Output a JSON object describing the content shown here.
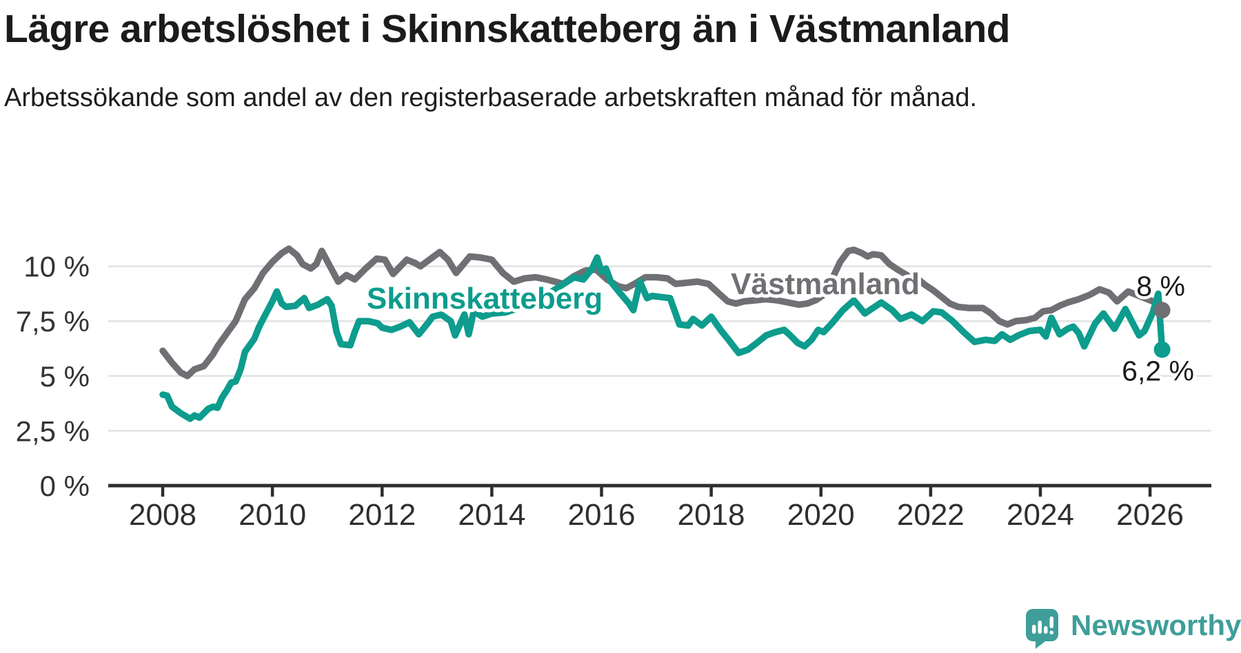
{
  "header": {
    "title": "Lägre arbetslöshet i Skinnskatteberg än i Västmanland",
    "subtitle": "Arbetssökande som andel av den registerbaserade arbetskraften månad för månad."
  },
  "colors": {
    "skinnskatteberg": "#0d9c8d",
    "vastmanland": "#6f7074",
    "axis": "#2e2e2e",
    "grid": "#e2e2e2",
    "label_text": "#1a1a1a",
    "logo": "#3f9e9a"
  },
  "footer": {
    "brand": "Newsworthy"
  },
  "chart_data": {
    "type": "line",
    "title": "Lägre arbetslöshet i Skinnskatteberg än i Västmanland",
    "subtitle": "Arbetssökande som andel av den registerbaserade arbetskraften månad för månad.",
    "grid": true,
    "x_range": [
      2008,
      2026.6
    ],
    "ylim": [
      0,
      11.3
    ],
    "x_ticks": [
      {
        "value": 2008,
        "label": "2008"
      },
      {
        "value": 2010,
        "label": "2010"
      },
      {
        "value": 2012,
        "label": "2012"
      },
      {
        "value": 2014,
        "label": "2014"
      },
      {
        "value": 2016,
        "label": "2016"
      },
      {
        "value": 2018,
        "label": "2018"
      },
      {
        "value": 2020,
        "label": "2020"
      },
      {
        "value": 2022,
        "label": "2022"
      },
      {
        "value": 2024,
        "label": "2024"
      },
      {
        "value": 2026,
        "label": "2026"
      }
    ],
    "y_ticks": [
      {
        "value": 0,
        "label": "0 %"
      },
      {
        "value": 2.5,
        "label": "2,5 %"
      },
      {
        "value": 5,
        "label": "5 %"
      },
      {
        "value": 7.5,
        "label": "7,5 %"
      },
      {
        "value": 10,
        "label": "10 %"
      }
    ],
    "series": [
      {
        "name": "Skinnskatteberg",
        "color_key": "skinnskatteberg",
        "end_value_label": "6,2 %",
        "end_label_pos": "below",
        "inline_label": {
          "x_year": 2013.87,
          "y_value": 8.55
        },
        "points": [
          [
            2008.0,
            4.15
          ],
          [
            2008.08,
            4.1
          ],
          [
            2008.17,
            3.6
          ],
          [
            2008.33,
            3.3
          ],
          [
            2008.5,
            3.05
          ],
          [
            2008.58,
            3.2
          ],
          [
            2008.67,
            3.1
          ],
          [
            2008.83,
            3.5
          ],
          [
            2008.92,
            3.6
          ],
          [
            2009.0,
            3.55
          ],
          [
            2009.08,
            4.0
          ],
          [
            2009.17,
            4.35
          ],
          [
            2009.25,
            4.7
          ],
          [
            2009.33,
            4.75
          ],
          [
            2009.42,
            5.3
          ],
          [
            2009.5,
            6.1
          ],
          [
            2009.67,
            6.7
          ],
          [
            2009.75,
            7.2
          ],
          [
            2009.83,
            7.6
          ],
          [
            2010.0,
            8.4
          ],
          [
            2010.08,
            8.85
          ],
          [
            2010.17,
            8.3
          ],
          [
            2010.25,
            8.15
          ],
          [
            2010.42,
            8.2
          ],
          [
            2010.58,
            8.55
          ],
          [
            2010.67,
            8.1
          ],
          [
            2010.83,
            8.25
          ],
          [
            2011.0,
            8.5
          ],
          [
            2011.08,
            8.2
          ],
          [
            2011.17,
            7.0
          ],
          [
            2011.25,
            6.45
          ],
          [
            2011.42,
            6.4
          ],
          [
            2011.5,
            7.0
          ],
          [
            2011.58,
            7.5
          ],
          [
            2011.75,
            7.5
          ],
          [
            2011.92,
            7.4
          ],
          [
            2012.0,
            7.2
          ],
          [
            2012.17,
            7.1
          ],
          [
            2012.33,
            7.25
          ],
          [
            2012.5,
            7.45
          ],
          [
            2012.67,
            6.9
          ],
          [
            2012.83,
            7.4
          ],
          [
            2012.92,
            7.7
          ],
          [
            2013.08,
            7.8
          ],
          [
            2013.25,
            7.5
          ],
          [
            2013.33,
            6.85
          ],
          [
            2013.5,
            7.8
          ],
          [
            2013.58,
            6.9
          ],
          [
            2013.67,
            7.95
          ],
          [
            2013.83,
            7.7
          ],
          [
            2014.0,
            7.85
          ],
          [
            2014.25,
            7.9
          ],
          [
            2014.5,
            8.1
          ],
          [
            2014.75,
            8.4
          ],
          [
            2015.0,
            8.7
          ],
          [
            2015.25,
            9.1
          ],
          [
            2015.5,
            9.5
          ],
          [
            2015.67,
            9.4
          ],
          [
            2015.83,
            9.9
          ],
          [
            2015.92,
            10.4
          ],
          [
            2016.0,
            9.75
          ],
          [
            2016.08,
            9.9
          ],
          [
            2016.17,
            9.3
          ],
          [
            2016.33,
            8.8
          ],
          [
            2016.5,
            8.3
          ],
          [
            2016.58,
            8.0
          ],
          [
            2016.7,
            9.3
          ],
          [
            2016.83,
            8.55
          ],
          [
            2016.92,
            8.65
          ],
          [
            2017.08,
            8.6
          ],
          [
            2017.25,
            8.55
          ],
          [
            2017.42,
            7.35
          ],
          [
            2017.58,
            7.3
          ],
          [
            2017.67,
            7.6
          ],
          [
            2017.83,
            7.3
          ],
          [
            2018.0,
            7.7
          ],
          [
            2018.17,
            7.1
          ],
          [
            2018.33,
            6.6
          ],
          [
            2018.5,
            6.05
          ],
          [
            2018.67,
            6.2
          ],
          [
            2018.83,
            6.5
          ],
          [
            2019.0,
            6.85
          ],
          [
            2019.17,
            7.0
          ],
          [
            2019.33,
            7.1
          ],
          [
            2019.42,
            6.9
          ],
          [
            2019.58,
            6.5
          ],
          [
            2019.7,
            6.35
          ],
          [
            2019.83,
            6.65
          ],
          [
            2019.95,
            7.1
          ],
          [
            2020.05,
            7.0
          ],
          [
            2020.2,
            7.4
          ],
          [
            2020.4,
            8.0
          ],
          [
            2020.6,
            8.45
          ],
          [
            2020.8,
            7.85
          ],
          [
            2020.95,
            8.1
          ],
          [
            2021.1,
            8.35
          ],
          [
            2021.3,
            8.0
          ],
          [
            2021.45,
            7.6
          ],
          [
            2021.65,
            7.8
          ],
          [
            2021.85,
            7.5
          ],
          [
            2022.05,
            7.95
          ],
          [
            2022.2,
            7.9
          ],
          [
            2022.4,
            7.5
          ],
          [
            2022.6,
            7.0
          ],
          [
            2022.8,
            6.55
          ],
          [
            2023.0,
            6.65
          ],
          [
            2023.17,
            6.6
          ],
          [
            2023.3,
            6.9
          ],
          [
            2023.45,
            6.65
          ],
          [
            2023.6,
            6.85
          ],
          [
            2023.8,
            7.05
          ],
          [
            2024.0,
            7.1
          ],
          [
            2024.1,
            6.8
          ],
          [
            2024.2,
            7.65
          ],
          [
            2024.35,
            6.9
          ],
          [
            2024.5,
            7.15
          ],
          [
            2024.6,
            7.25
          ],
          [
            2024.7,
            6.95
          ],
          [
            2024.8,
            6.35
          ],
          [
            2025.0,
            7.4
          ],
          [
            2025.15,
            7.85
          ],
          [
            2025.35,
            7.15
          ],
          [
            2025.55,
            8.05
          ],
          [
            2025.8,
            6.85
          ],
          [
            2025.9,
            7.05
          ],
          [
            2026.05,
            7.9
          ],
          [
            2026.15,
            8.75
          ],
          [
            2026.22,
            6.2
          ]
        ]
      },
      {
        "name": "Västmanland",
        "color_key": "vastmanland",
        "end_value_label": "8 %",
        "end_label_pos": "above",
        "inline_label": {
          "x_year": 2020.08,
          "y_value": 9.2
        },
        "points": [
          [
            2008.0,
            6.15
          ],
          [
            2008.17,
            5.6
          ],
          [
            2008.33,
            5.15
          ],
          [
            2008.45,
            5.0
          ],
          [
            2008.58,
            5.3
          ],
          [
            2008.75,
            5.45
          ],
          [
            2008.92,
            6.0
          ],
          [
            2009.0,
            6.35
          ],
          [
            2009.17,
            6.95
          ],
          [
            2009.33,
            7.5
          ],
          [
            2009.5,
            8.5
          ],
          [
            2009.67,
            9.0
          ],
          [
            2009.83,
            9.7
          ],
          [
            2010.0,
            10.2
          ],
          [
            2010.17,
            10.6
          ],
          [
            2010.3,
            10.8
          ],
          [
            2010.45,
            10.5
          ],
          [
            2010.55,
            10.1
          ],
          [
            2010.7,
            9.9
          ],
          [
            2010.8,
            10.1
          ],
          [
            2010.9,
            10.7
          ],
          [
            2011.05,
            10.0
          ],
          [
            2011.2,
            9.3
          ],
          [
            2011.35,
            9.6
          ],
          [
            2011.5,
            9.4
          ],
          [
            2011.7,
            9.9
          ],
          [
            2011.9,
            10.35
          ],
          [
            2012.05,
            10.3
          ],
          [
            2012.2,
            9.65
          ],
          [
            2012.45,
            10.3
          ],
          [
            2012.6,
            10.15
          ],
          [
            2012.7,
            10.0
          ],
          [
            2013.05,
            10.65
          ],
          [
            2013.2,
            10.3
          ],
          [
            2013.35,
            9.7
          ],
          [
            2013.6,
            10.45
          ],
          [
            2013.8,
            10.4
          ],
          [
            2014.0,
            10.3
          ],
          [
            2014.2,
            9.7
          ],
          [
            2014.4,
            9.3
          ],
          [
            2014.6,
            9.45
          ],
          [
            2014.8,
            9.5
          ],
          [
            2015.0,
            9.4
          ],
          [
            2015.15,
            9.3
          ],
          [
            2015.3,
            9.2
          ],
          [
            2015.5,
            9.55
          ],
          [
            2015.7,
            9.8
          ],
          [
            2015.9,
            9.85
          ],
          [
            2016.1,
            9.4
          ],
          [
            2016.3,
            9.1
          ],
          [
            2016.45,
            9.0
          ],
          [
            2016.6,
            9.2
          ],
          [
            2016.8,
            9.5
          ],
          [
            2017.0,
            9.5
          ],
          [
            2017.2,
            9.45
          ],
          [
            2017.35,
            9.2
          ],
          [
            2017.55,
            9.25
          ],
          [
            2017.75,
            9.3
          ],
          [
            2017.95,
            9.2
          ],
          [
            2018.1,
            8.85
          ],
          [
            2018.3,
            8.4
          ],
          [
            2018.45,
            8.3
          ],
          [
            2018.6,
            8.4
          ],
          [
            2018.8,
            8.45
          ],
          [
            2019.0,
            8.5
          ],
          [
            2019.2,
            8.45
          ],
          [
            2019.4,
            8.35
          ],
          [
            2019.6,
            8.25
          ],
          [
            2019.75,
            8.3
          ],
          [
            2019.9,
            8.45
          ],
          [
            2020.05,
            8.7
          ],
          [
            2020.2,
            9.4
          ],
          [
            2020.35,
            10.2
          ],
          [
            2020.5,
            10.7
          ],
          [
            2020.6,
            10.75
          ],
          [
            2020.75,
            10.6
          ],
          [
            2020.85,
            10.45
          ],
          [
            2020.95,
            10.55
          ],
          [
            2021.1,
            10.5
          ],
          [
            2021.25,
            10.1
          ],
          [
            2021.4,
            9.85
          ],
          [
            2021.6,
            9.55
          ],
          [
            2021.75,
            9.45
          ],
          [
            2021.9,
            9.15
          ],
          [
            2022.05,
            8.9
          ],
          [
            2022.2,
            8.6
          ],
          [
            2022.35,
            8.3
          ],
          [
            2022.5,
            8.15
          ],
          [
            2022.7,
            8.1
          ],
          [
            2022.95,
            8.1
          ],
          [
            2023.1,
            7.85
          ],
          [
            2023.25,
            7.5
          ],
          [
            2023.4,
            7.35
          ],
          [
            2023.55,
            7.5
          ],
          [
            2023.75,
            7.55
          ],
          [
            2023.9,
            7.65
          ],
          [
            2024.05,
            7.95
          ],
          [
            2024.2,
            8.0
          ],
          [
            2024.35,
            8.2
          ],
          [
            2024.5,
            8.35
          ],
          [
            2024.7,
            8.5
          ],
          [
            2024.9,
            8.7
          ],
          [
            2025.08,
            8.95
          ],
          [
            2025.25,
            8.8
          ],
          [
            2025.4,
            8.4
          ],
          [
            2025.6,
            8.85
          ],
          [
            2025.8,
            8.65
          ],
          [
            2025.95,
            8.5
          ],
          [
            2026.1,
            8.35
          ],
          [
            2026.22,
            8.0
          ]
        ]
      }
    ]
  }
}
